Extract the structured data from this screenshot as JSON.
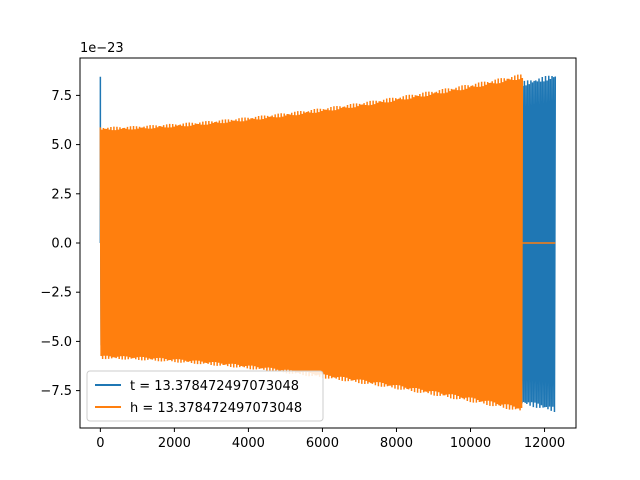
{
  "chart_data": {
    "type": "line",
    "title": "",
    "xlabel": "",
    "ylabel": "",
    "y_offset_label": "1e−23",
    "xlim": [
      -550,
      12850
    ],
    "ylim": [
      -9.4,
      9.4
    ],
    "x_ticks": [
      0,
      2000,
      4000,
      6000,
      8000,
      10000,
      12000
    ],
    "x_tick_labels": [
      "0",
      "2000",
      "4000",
      "6000",
      "8000",
      "10000",
      "12000"
    ],
    "y_ticks": [
      -7.5,
      -5.0,
      -2.5,
      0.0,
      2.5,
      5.0,
      7.5
    ],
    "y_tick_labels": [
      "−7.5",
      "−5.0",
      "−2.5",
      "0.0",
      "2.5",
      "5.0",
      "7.5"
    ],
    "grid": false,
    "legend_position": "lower-left",
    "series": [
      {
        "name": "t = 13.378472497073048",
        "color": "#1f77b4",
        "x_range": [
          0,
          12290
        ],
        "envelope_start": 5.2,
        "envelope_end": 8.6,
        "initial_spike": 8.45
      },
      {
        "name": "h = 13.378472497073048",
        "color": "#ff7f0e",
        "x_range": [
          0,
          11400
        ],
        "envelope_start": 5.9,
        "envelope_end": 8.6,
        "flat_after": [
          11400,
          12290
        ],
        "flat_value": 0.0
      }
    ]
  }
}
